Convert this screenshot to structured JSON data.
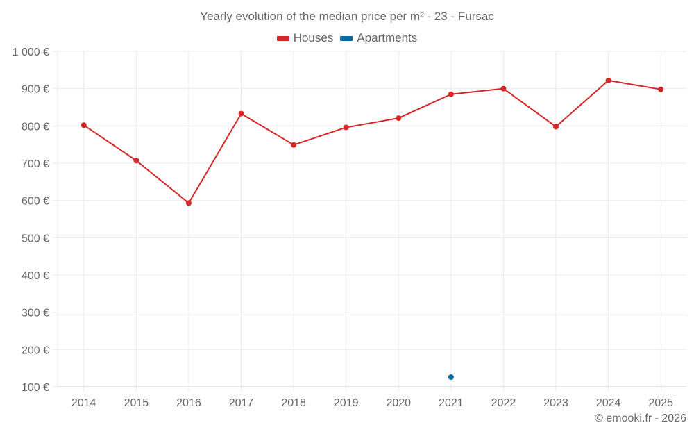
{
  "header": {
    "title": "Yearly evolution of the median price per m² - 23 - Fursac"
  },
  "legend": {
    "items": [
      {
        "label": "Houses",
        "color": "#d62728"
      },
      {
        "label": "Apartments",
        "color": "#0b6aa2"
      }
    ]
  },
  "footer": {
    "credit": "© emooki.fr - 2026"
  },
  "colors": {
    "houses": "#d62728",
    "apartments": "#0b6aa2",
    "grid": "#ebebeb",
    "axis": "#d0d0d0",
    "text": "#666666"
  },
  "chart_data": {
    "type": "line",
    "title": "Yearly evolution of the median price per m² - 23 - Fursac",
    "xlabel": "",
    "ylabel": "",
    "categories": [
      "2014",
      "2015",
      "2016",
      "2017",
      "2018",
      "2019",
      "2020",
      "2021",
      "2022",
      "2023",
      "2024",
      "2025"
    ],
    "series": [
      {
        "name": "Houses",
        "color": "#d62728",
        "values": [
          802,
          707,
          593,
          833,
          749,
          796,
          821,
          885,
          900,
          798,
          922,
          898
        ]
      },
      {
        "name": "Apartments",
        "color": "#0b6aa2",
        "values": [
          null,
          null,
          null,
          null,
          null,
          null,
          null,
          126,
          null,
          null,
          null,
          null
        ]
      }
    ],
    "ylim": [
      100,
      1000
    ],
    "yticks": [
      100,
      200,
      300,
      400,
      500,
      600,
      700,
      800,
      900,
      1000
    ],
    "ytick_labels": [
      "100 €",
      "200 €",
      "300 €",
      "400 €",
      "500 €",
      "600 €",
      "700 €",
      "800 €",
      "900 €",
      "1 000 €"
    ],
    "grid": true,
    "legend_position": "top-center"
  }
}
